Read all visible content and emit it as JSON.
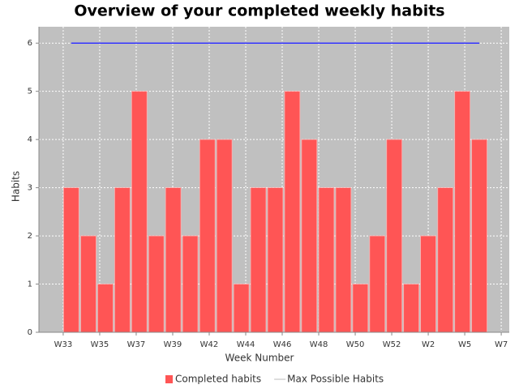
{
  "chart_data": {
    "type": "bar",
    "title": "Overview of your completed weekly habits",
    "x_label": "Week Number",
    "y_label": "Habits",
    "x": [
      0.44,
      1.38,
      2.31,
      3.24,
      4.17,
      5.1,
      6.03,
      6.96,
      7.9,
      8.83,
      9.76,
      10.69,
      11.62,
      12.55,
      13.48,
      14.42,
      15.35,
      16.28,
      17.21,
      18.14,
      19.07,
      20.0,
      20.94,
      21.87,
      22.8
    ],
    "series": [
      {
        "name": "Completed habits",
        "type": "bar",
        "color": "#ff5555",
        "values": [
          3,
          2,
          1,
          3,
          5,
          2,
          3,
          2,
          4,
          4,
          1,
          3,
          3,
          5,
          4,
          3,
          3,
          1,
          2,
          4,
          1,
          2,
          3,
          5,
          4
        ]
      },
      {
        "name": "Max Possible Habits",
        "type": "line",
        "color": "#3333ff",
        "values": [
          6,
          6,
          6,
          6,
          6,
          6,
          6,
          6,
          6,
          6,
          6,
          6,
          6,
          6,
          6,
          6,
          6,
          6,
          6,
          6,
          6,
          6,
          6,
          6,
          6
        ]
      }
    ],
    "xlim": [
      -1.33,
      24.44
    ],
    "xticks": [
      {
        "value": 0,
        "label": "W33"
      },
      {
        "value": 2,
        "label": "W35"
      },
      {
        "value": 4,
        "label": "W37"
      },
      {
        "value": 6,
        "label": "W39"
      },
      {
        "value": 8,
        "label": "W42"
      },
      {
        "value": 10,
        "label": "W44"
      },
      {
        "value": 12,
        "label": "W46"
      },
      {
        "value": 14,
        "label": "W48"
      },
      {
        "value": 16,
        "label": "W50"
      },
      {
        "value": 18,
        "label": "W52"
      },
      {
        "value": 20,
        "label": "W2"
      },
      {
        "value": 22,
        "label": "W5"
      },
      {
        "value": 24,
        "label": "W7"
      }
    ],
    "ylim": [
      0,
      6.34
    ],
    "yticks": [
      0,
      1,
      2,
      3,
      4,
      5,
      6
    ],
    "grid": true,
    "legend": "bottom"
  }
}
